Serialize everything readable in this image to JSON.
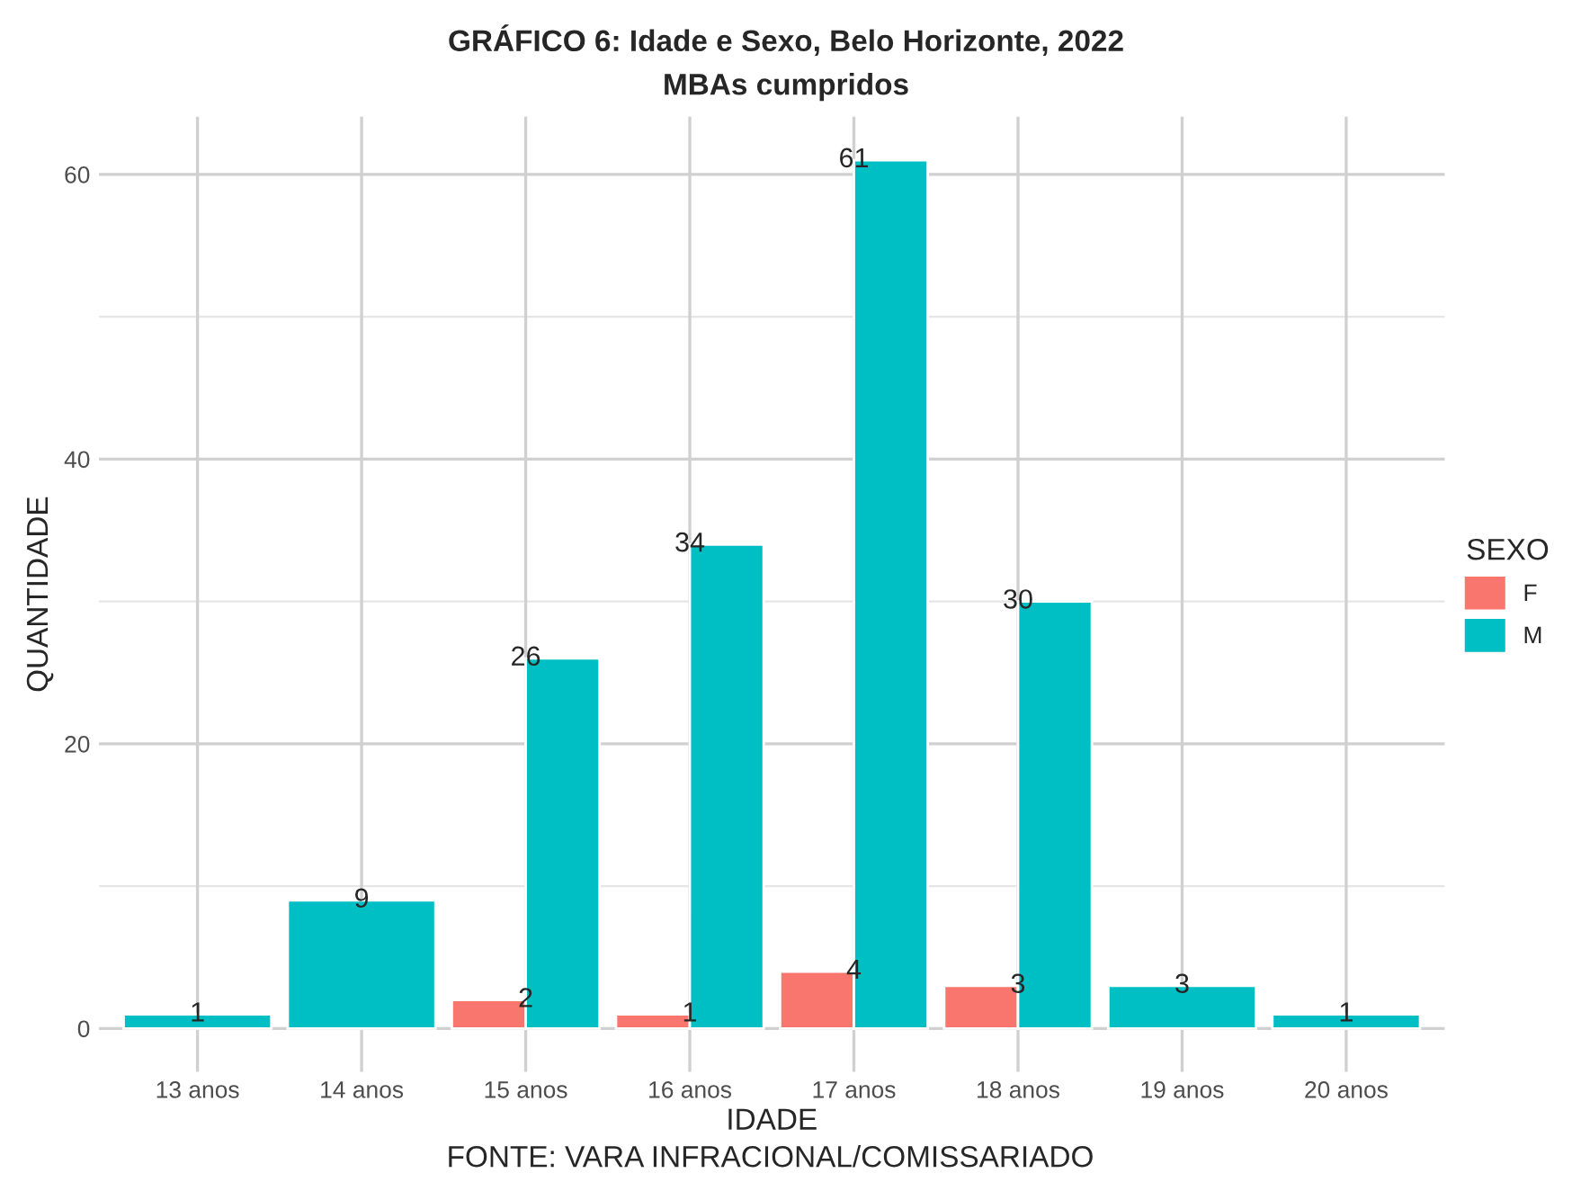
{
  "chart_data": {
    "type": "bar",
    "title": "GRÁFICO 6: Idade e Sexo, Belo Horizonte, 2022",
    "subtitle": "MBAs cumpridos",
    "xlabel": "IDADE",
    "ylabel": "QUANTIDADE",
    "legend_title": "SEXO",
    "categories": [
      "13 anos",
      "14 anos",
      "15 anos",
      "16 anos",
      "17 anos",
      "18 anos",
      "19 anos",
      "20 anos"
    ],
    "series": [
      {
        "name": "F",
        "color": "#f8766d",
        "values": [
          null,
          null,
          2,
          1,
          4,
          3,
          null,
          null
        ]
      },
      {
        "name": "M",
        "color": "#00bfc4",
        "values": [
          1,
          9,
          26,
          34,
          61,
          30,
          3,
          1
        ]
      }
    ],
    "ylim": [
      -3.05,
      64.05
    ],
    "yticks": [
      0,
      {
        "value": 10,
        "label": null
      },
      20,
      {
        "value": 30,
        "label": null
      },
      40,
      {
        "value": 50,
        "label": null
      },
      60
    ],
    "grid": true,
    "legend": "right",
    "data_labels": true,
    "annotations": [
      "FONTE: VARA INFRACIONAL/COMISSARIADO"
    ]
  }
}
